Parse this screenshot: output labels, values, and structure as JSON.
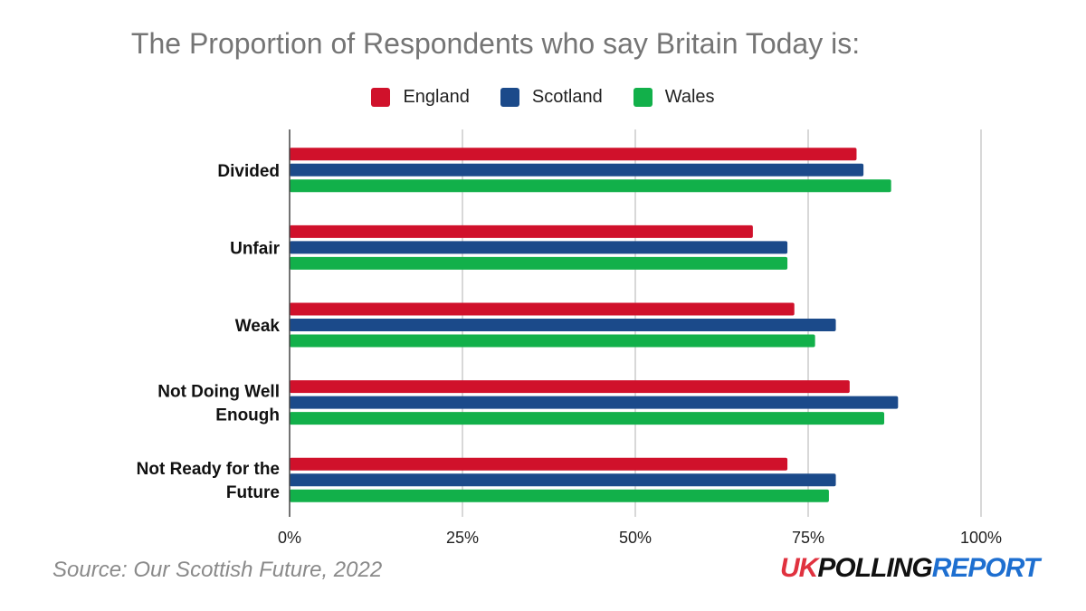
{
  "chart_data": {
    "type": "bar",
    "orientation": "horizontal",
    "title": "The Proportion of Respondents who say Britain Today is:",
    "categories": [
      [
        "Divided"
      ],
      [
        "Unfair"
      ],
      [
        "Weak"
      ],
      [
        "Not Doing Well",
        "Enough"
      ],
      [
        "Not Ready for the",
        "Future"
      ]
    ],
    "series": [
      {
        "name": "England",
        "color": "#d0112b",
        "values": [
          82,
          67,
          73,
          81,
          72
        ]
      },
      {
        "name": "Scotland",
        "color": "#1b4a8a",
        "values": [
          83,
          72,
          79,
          88,
          79
        ]
      },
      {
        "name": "Wales",
        "color": "#12b04a",
        "values": [
          87,
          72,
          76,
          86,
          78
        ]
      }
    ],
    "xlim": [
      0,
      100
    ],
    "x_ticks": [
      0,
      25,
      50,
      75,
      100
    ],
    "x_tick_labels": [
      "0%",
      "25%",
      "50%",
      "75%",
      "100%"
    ],
    "grid": true,
    "legend_position": "top-center"
  },
  "footer": {
    "source": "Source: Our Scottish Future, 2022",
    "brand": {
      "part1": "UK",
      "part2": "POLLING",
      "part3": "REPORT"
    }
  }
}
